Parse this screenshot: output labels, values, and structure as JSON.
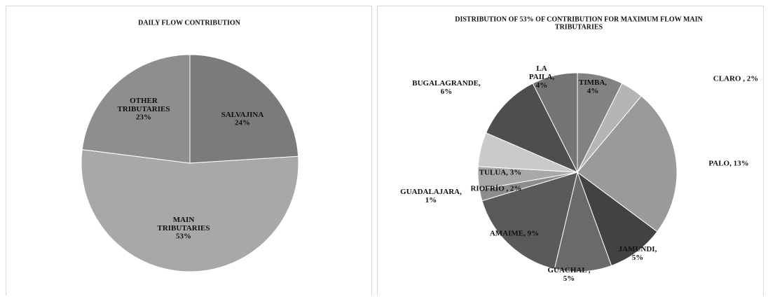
{
  "chart_data": [
    {
      "type": "pie",
      "title": "DAILY FLOW CONTRIBUTION",
      "categories": [
        "SALVAJINA",
        "MAIN TRIBUTARIES",
        "OTHER TRIBUTARIES"
      ],
      "values": [
        24,
        53,
        23
      ],
      "value_labels": [
        "24%",
        "53%",
        "23%"
      ],
      "colors": [
        "#7b7b7b",
        "#a8a8a8",
        "#8e8e8e"
      ]
    },
    {
      "type": "pie",
      "title": "DISTRIBUTION OF 53% OF CONTRIBUTION FOR MAXIMUM FLOW MAIN TRIBUTARIES",
      "labels": [
        "TIMBA, 4%",
        "CLARO , 2%",
        "PALO, 13%",
        "JAMUNDI, 5%",
        "GUACHAL , 5%",
        "AMAIME, 9%",
        "GUADALAJARA, 1%",
        "RIOFRÍO , 2%",
        "TULUA, 3%",
        "BUGALAGRANDE, 6%",
        "LA PAILA, 4%"
      ],
      "values": [
        4,
        2,
        13,
        5,
        5,
        9,
        1,
        2,
        3,
        6,
        4
      ],
      "colors": [
        "#828282",
        "#b5b5b5",
        "#9a9a9a",
        "#424242",
        "#6a6a6a",
        "#5a5a5a",
        "#8c8c8c",
        "#a8a8a8",
        "#cacaca",
        "#4e4e4e",
        "#747474"
      ]
    }
  ]
}
